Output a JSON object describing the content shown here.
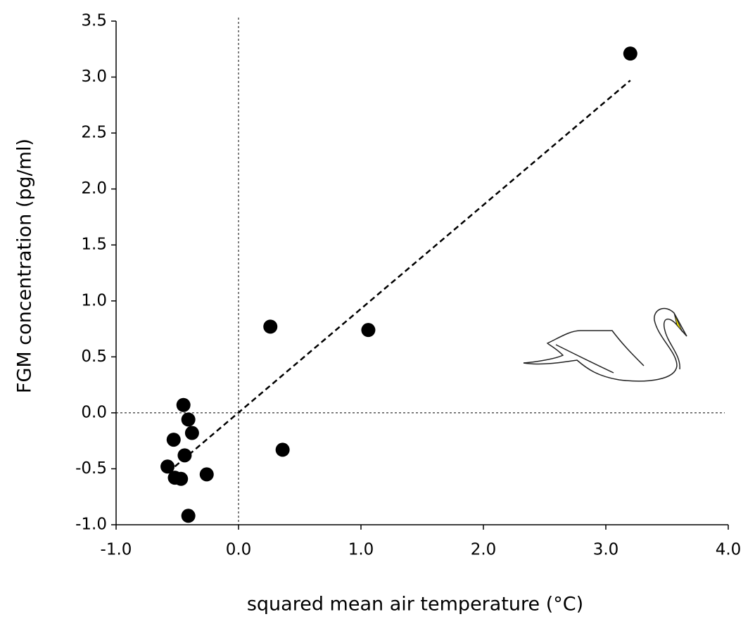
{
  "chart_data": {
    "type": "scatter",
    "xlabel": "squared mean air temperature (°C)",
    "ylabel": "FGM concentration (pg/ml)",
    "x": [
      3.2,
      0.26,
      1.06,
      -0.45,
      -0.41,
      -0.53,
      -0.38,
      -0.44,
      -0.58,
      -0.52,
      -0.47,
      -0.26,
      -0.41,
      0.36
    ],
    "y": [
      3.21,
      0.77,
      0.74,
      0.07,
      -0.06,
      -0.24,
      -0.18,
      -0.38,
      -0.48,
      -0.58,
      -0.59,
      -0.55,
      -0.92,
      -0.33
    ],
    "color": "#000000",
    "trendline": {
      "x": [
        -0.52,
        3.2
      ],
      "y": [
        -0.48,
        2.97
      ],
      "color": "#000000",
      "dashed": true
    },
    "zero_lines": true,
    "xlim": [
      -1.0,
      4.0
    ],
    "ylim": [
      -1.0,
      3.5
    ],
    "xticks": [
      {
        "value": -1.0,
        "label": "-1.0"
      },
      {
        "value": 0,
        "label": "0.0"
      },
      {
        "value": 1,
        "label": "1.0"
      },
      {
        "value": 2,
        "label": "2.0"
      },
      {
        "value": 3,
        "label": "3.0"
      },
      {
        "value": 4,
        "label": "4.0"
      }
    ],
    "yticks": [
      {
        "value": -1.0,
        "label": "-1.0"
      },
      -0.5,
      {
        "value": 0,
        "label": "0.0"
      },
      0.5,
      {
        "value": 1,
        "label": "1.0"
      },
      1.5,
      {
        "value": 2,
        "label": "2.0"
      },
      2.5,
      {
        "value": 3,
        "label": "3.0"
      },
      3.5
    ]
  }
}
